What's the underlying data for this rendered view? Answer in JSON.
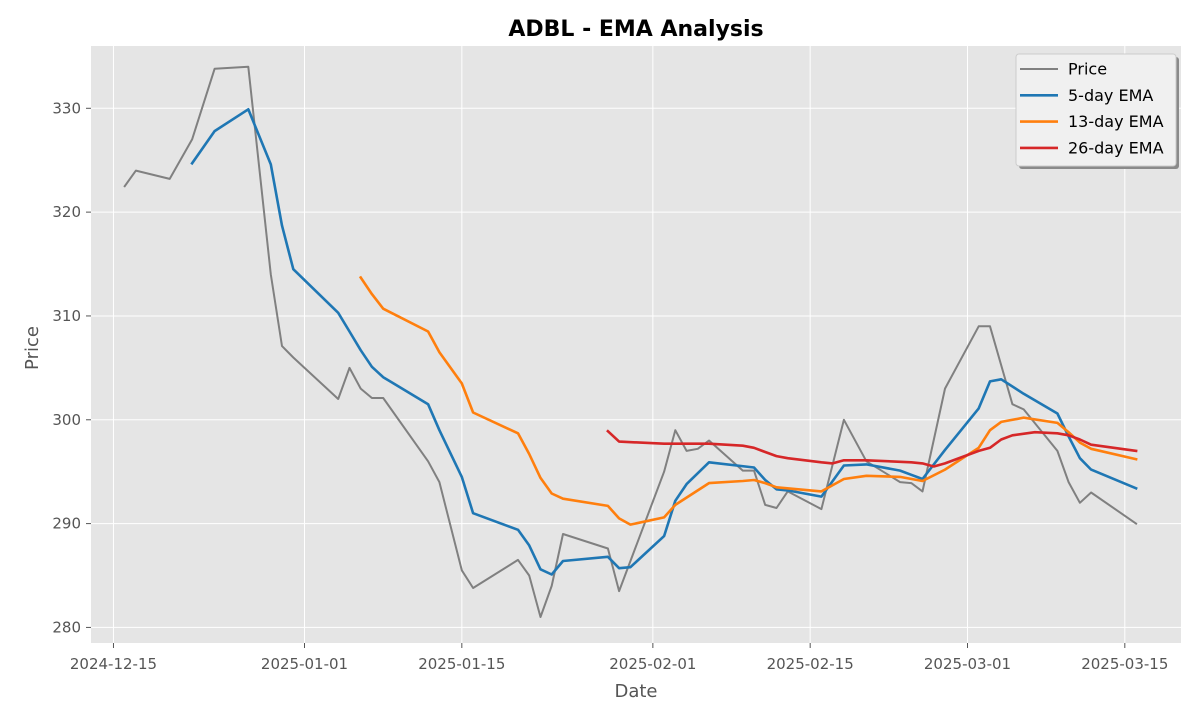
{
  "chart_data": {
    "type": "line",
    "title": "ADBL - EMA Analysis",
    "xlabel": "Date",
    "ylabel": "Price",
    "xlim": [
      "2024-12-13",
      "2025-03-20"
    ],
    "ylim": [
      278.5,
      336.0
    ],
    "x_ticks": [
      "2024-12-15",
      "2025-01-01",
      "2025-01-15",
      "2025-02-01",
      "2025-02-15",
      "2025-03-01",
      "2025-03-15"
    ],
    "y_ticks": [
      280,
      290,
      300,
      310,
      320,
      330
    ],
    "grid": true,
    "legend_position": "top-right",
    "series": [
      {
        "name": "Price",
        "color": "#808080",
        "points": [
          [
            "2024-12-16",
            322.5
          ],
          [
            "2024-12-17",
            324.0
          ],
          [
            "2024-12-20",
            323.2
          ],
          [
            "2024-12-22",
            327.0
          ],
          [
            "2024-12-24",
            333.8
          ],
          [
            "2024-12-27",
            334.0
          ],
          [
            "2024-12-29",
            314.0
          ],
          [
            "2024-12-30",
            307.1
          ],
          [
            "2024-12-31",
            306.0
          ],
          [
            "2025-01-04",
            302.0
          ],
          [
            "2025-01-05",
            305.0
          ],
          [
            "2025-01-06",
            303.0
          ],
          [
            "2025-01-07",
            302.1
          ],
          [
            "2025-01-08",
            302.1
          ],
          [
            "2025-01-12",
            296.0
          ],
          [
            "2025-01-13",
            294.0
          ],
          [
            "2025-01-15",
            285.5
          ],
          [
            "2025-01-16",
            283.8
          ],
          [
            "2025-01-20",
            286.5
          ],
          [
            "2025-01-21",
            285.0
          ],
          [
            "2025-01-22",
            281.0
          ],
          [
            "2025-01-23",
            284.0
          ],
          [
            "2025-01-24",
            289.0
          ],
          [
            "2025-01-28",
            287.6
          ],
          [
            "2025-01-29",
            283.5
          ],
          [
            "2025-02-02",
            295.0
          ],
          [
            "2025-02-03",
            299.0
          ],
          [
            "2025-02-04",
            297.0
          ],
          [
            "2025-02-05",
            297.2
          ],
          [
            "2025-02-06",
            298.0
          ],
          [
            "2025-02-09",
            295.1
          ],
          [
            "2025-02-10",
            295.1
          ],
          [
            "2025-02-11",
            291.8
          ],
          [
            "2025-02-12",
            291.5
          ],
          [
            "2025-02-13",
            293.1
          ],
          [
            "2025-02-16",
            291.4
          ],
          [
            "2025-02-18",
            300.0
          ],
          [
            "2025-02-20",
            296.0
          ],
          [
            "2025-02-23",
            294.0
          ],
          [
            "2025-02-24",
            293.9
          ],
          [
            "2025-02-25",
            293.1
          ],
          [
            "2025-02-27",
            303.0
          ],
          [
            "2025-03-02",
            309.0
          ],
          [
            "2025-03-03",
            309.0
          ],
          [
            "2025-03-05",
            301.5
          ],
          [
            "2025-03-06",
            301.0
          ],
          [
            "2025-03-09",
            297.0
          ],
          [
            "2025-03-10",
            294.0
          ],
          [
            "2025-03-11",
            292.0
          ],
          [
            "2025-03-12",
            293.0
          ],
          [
            "2025-03-16",
            290.0
          ]
        ]
      },
      {
        "name": "5-day EMA",
        "color": "#1f77b4",
        "points": [
          [
            "2024-12-22",
            324.7
          ],
          [
            "2024-12-24",
            327.8
          ],
          [
            "2024-12-27",
            329.9
          ],
          [
            "2024-12-29",
            324.6
          ],
          [
            "2024-12-30",
            318.7
          ],
          [
            "2024-12-31",
            314.5
          ],
          [
            "2025-01-04",
            310.3
          ],
          [
            "2025-01-05",
            308.5
          ],
          [
            "2025-01-06",
            306.7
          ],
          [
            "2025-01-07",
            305.1
          ],
          [
            "2025-01-08",
            304.1
          ],
          [
            "2025-01-12",
            301.5
          ],
          [
            "2025-01-13",
            299.0
          ],
          [
            "2025-01-15",
            294.5
          ],
          [
            "2025-01-16",
            291.0
          ],
          [
            "2025-01-20",
            289.4
          ],
          [
            "2025-01-21",
            287.9
          ],
          [
            "2025-01-22",
            285.6
          ],
          [
            "2025-01-23",
            285.1
          ],
          [
            "2025-01-24",
            286.4
          ],
          [
            "2025-01-28",
            286.8
          ],
          [
            "2025-01-29",
            285.7
          ],
          [
            "2025-01-30",
            285.8
          ],
          [
            "2025-02-02",
            288.8
          ],
          [
            "2025-02-03",
            292.2
          ],
          [
            "2025-02-04",
            293.8
          ],
          [
            "2025-02-06",
            295.9
          ],
          [
            "2025-02-10",
            295.4
          ],
          [
            "2025-02-11",
            294.2
          ],
          [
            "2025-02-12",
            293.3
          ],
          [
            "2025-02-13",
            293.2
          ],
          [
            "2025-02-16",
            292.6
          ],
          [
            "2025-02-18",
            295.6
          ],
          [
            "2025-02-20",
            295.7
          ],
          [
            "2025-02-23",
            295.1
          ],
          [
            "2025-02-24",
            294.7
          ],
          [
            "2025-02-25",
            294.3
          ],
          [
            "2025-02-27",
            297.1
          ],
          [
            "2025-03-02",
            301.1
          ],
          [
            "2025-03-03",
            303.7
          ],
          [
            "2025-03-04",
            303.9
          ],
          [
            "2025-03-06",
            302.5
          ],
          [
            "2025-03-09",
            300.6
          ],
          [
            "2025-03-10",
            298.4
          ],
          [
            "2025-03-11",
            296.3
          ],
          [
            "2025-03-12",
            295.2
          ],
          [
            "2025-03-16",
            293.4
          ]
        ]
      },
      {
        "name": "13-day EMA",
        "color": "#ff7f0e",
        "points": [
          [
            "2025-01-06",
            313.7
          ],
          [
            "2025-01-07",
            312.1
          ],
          [
            "2025-01-08",
            310.7
          ],
          [
            "2025-01-12",
            308.5
          ],
          [
            "2025-01-13",
            306.5
          ],
          [
            "2025-01-15",
            303.5
          ],
          [
            "2025-01-16",
            300.7
          ],
          [
            "2025-01-20",
            298.7
          ],
          [
            "2025-01-21",
            296.7
          ],
          [
            "2025-01-22",
            294.4
          ],
          [
            "2025-01-23",
            292.9
          ],
          [
            "2025-01-24",
            292.4
          ],
          [
            "2025-01-28",
            291.7
          ],
          [
            "2025-01-29",
            290.5
          ],
          [
            "2025-01-30",
            289.9
          ],
          [
            "2025-02-02",
            290.6
          ],
          [
            "2025-02-03",
            291.8
          ],
          [
            "2025-02-06",
            293.9
          ],
          [
            "2025-02-09",
            294.1
          ],
          [
            "2025-02-10",
            294.2
          ],
          [
            "2025-02-11",
            293.9
          ],
          [
            "2025-02-12",
            293.5
          ],
          [
            "2025-02-16",
            293.1
          ],
          [
            "2025-02-18",
            294.3
          ],
          [
            "2025-02-20",
            294.6
          ],
          [
            "2025-02-23",
            294.5
          ],
          [
            "2025-02-25",
            294.1
          ],
          [
            "2025-02-27",
            295.2
          ],
          [
            "2025-03-02",
            297.3
          ],
          [
            "2025-03-03",
            299.0
          ],
          [
            "2025-03-04",
            299.8
          ],
          [
            "2025-03-06",
            300.2
          ],
          [
            "2025-03-09",
            299.7
          ],
          [
            "2025-03-10",
            298.8
          ],
          [
            "2025-03-11",
            297.8
          ],
          [
            "2025-03-12",
            297.2
          ],
          [
            "2025-03-16",
            296.2
          ]
        ]
      },
      {
        "name": "26-day EMA",
        "color": "#d62728",
        "points": [
          [
            "2025-01-28",
            298.9
          ],
          [
            "2025-01-29",
            297.9
          ],
          [
            "2025-02-02",
            297.7
          ],
          [
            "2025-02-03",
            297.7
          ],
          [
            "2025-02-06",
            297.7
          ],
          [
            "2025-02-09",
            297.5
          ],
          [
            "2025-02-10",
            297.3
          ],
          [
            "2025-02-11",
            296.9
          ],
          [
            "2025-02-12",
            296.5
          ],
          [
            "2025-02-13",
            296.3
          ],
          [
            "2025-02-16",
            295.9
          ],
          [
            "2025-02-17",
            295.8
          ],
          [
            "2025-02-18",
            296.1
          ],
          [
            "2025-02-20",
            296.1
          ],
          [
            "2025-02-24",
            295.9
          ],
          [
            "2025-02-25",
            295.8
          ],
          [
            "2025-02-26",
            295.5
          ],
          [
            "2025-02-27",
            295.8
          ],
          [
            "2025-03-02",
            297.0
          ],
          [
            "2025-03-03",
            297.3
          ],
          [
            "2025-03-04",
            298.1
          ],
          [
            "2025-03-05",
            298.5
          ],
          [
            "2025-03-07",
            298.8
          ],
          [
            "2025-03-09",
            298.7
          ],
          [
            "2025-03-10",
            298.5
          ],
          [
            "2025-03-11",
            298.1
          ],
          [
            "2025-03-12",
            297.6
          ],
          [
            "2025-03-16",
            297.0
          ]
        ]
      }
    ]
  }
}
